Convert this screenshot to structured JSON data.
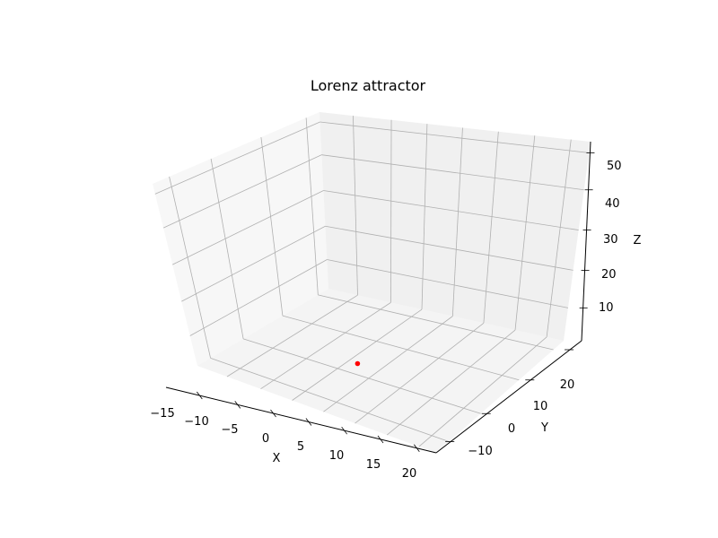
{
  "chart_data": {
    "type": "scatter",
    "projection": "3d",
    "title": "Lorenz attractor",
    "xlabel": "X",
    "ylabel": "Y",
    "zlabel": "Z",
    "x_ticks": [
      "−15",
      "−10",
      "−5",
      "0",
      "5",
      "10",
      "15",
      "20"
    ],
    "y_ticks": [
      "−10",
      "0",
      "10",
      "20"
    ],
    "z_ticks": [
      "10",
      "20",
      "30",
      "40",
      "50"
    ],
    "grid": true,
    "series": [
      {
        "points": [
          {
            "x": 1,
            "y": 1,
            "z": 1
          }
        ],
        "color": "#ff0000"
      }
    ]
  }
}
